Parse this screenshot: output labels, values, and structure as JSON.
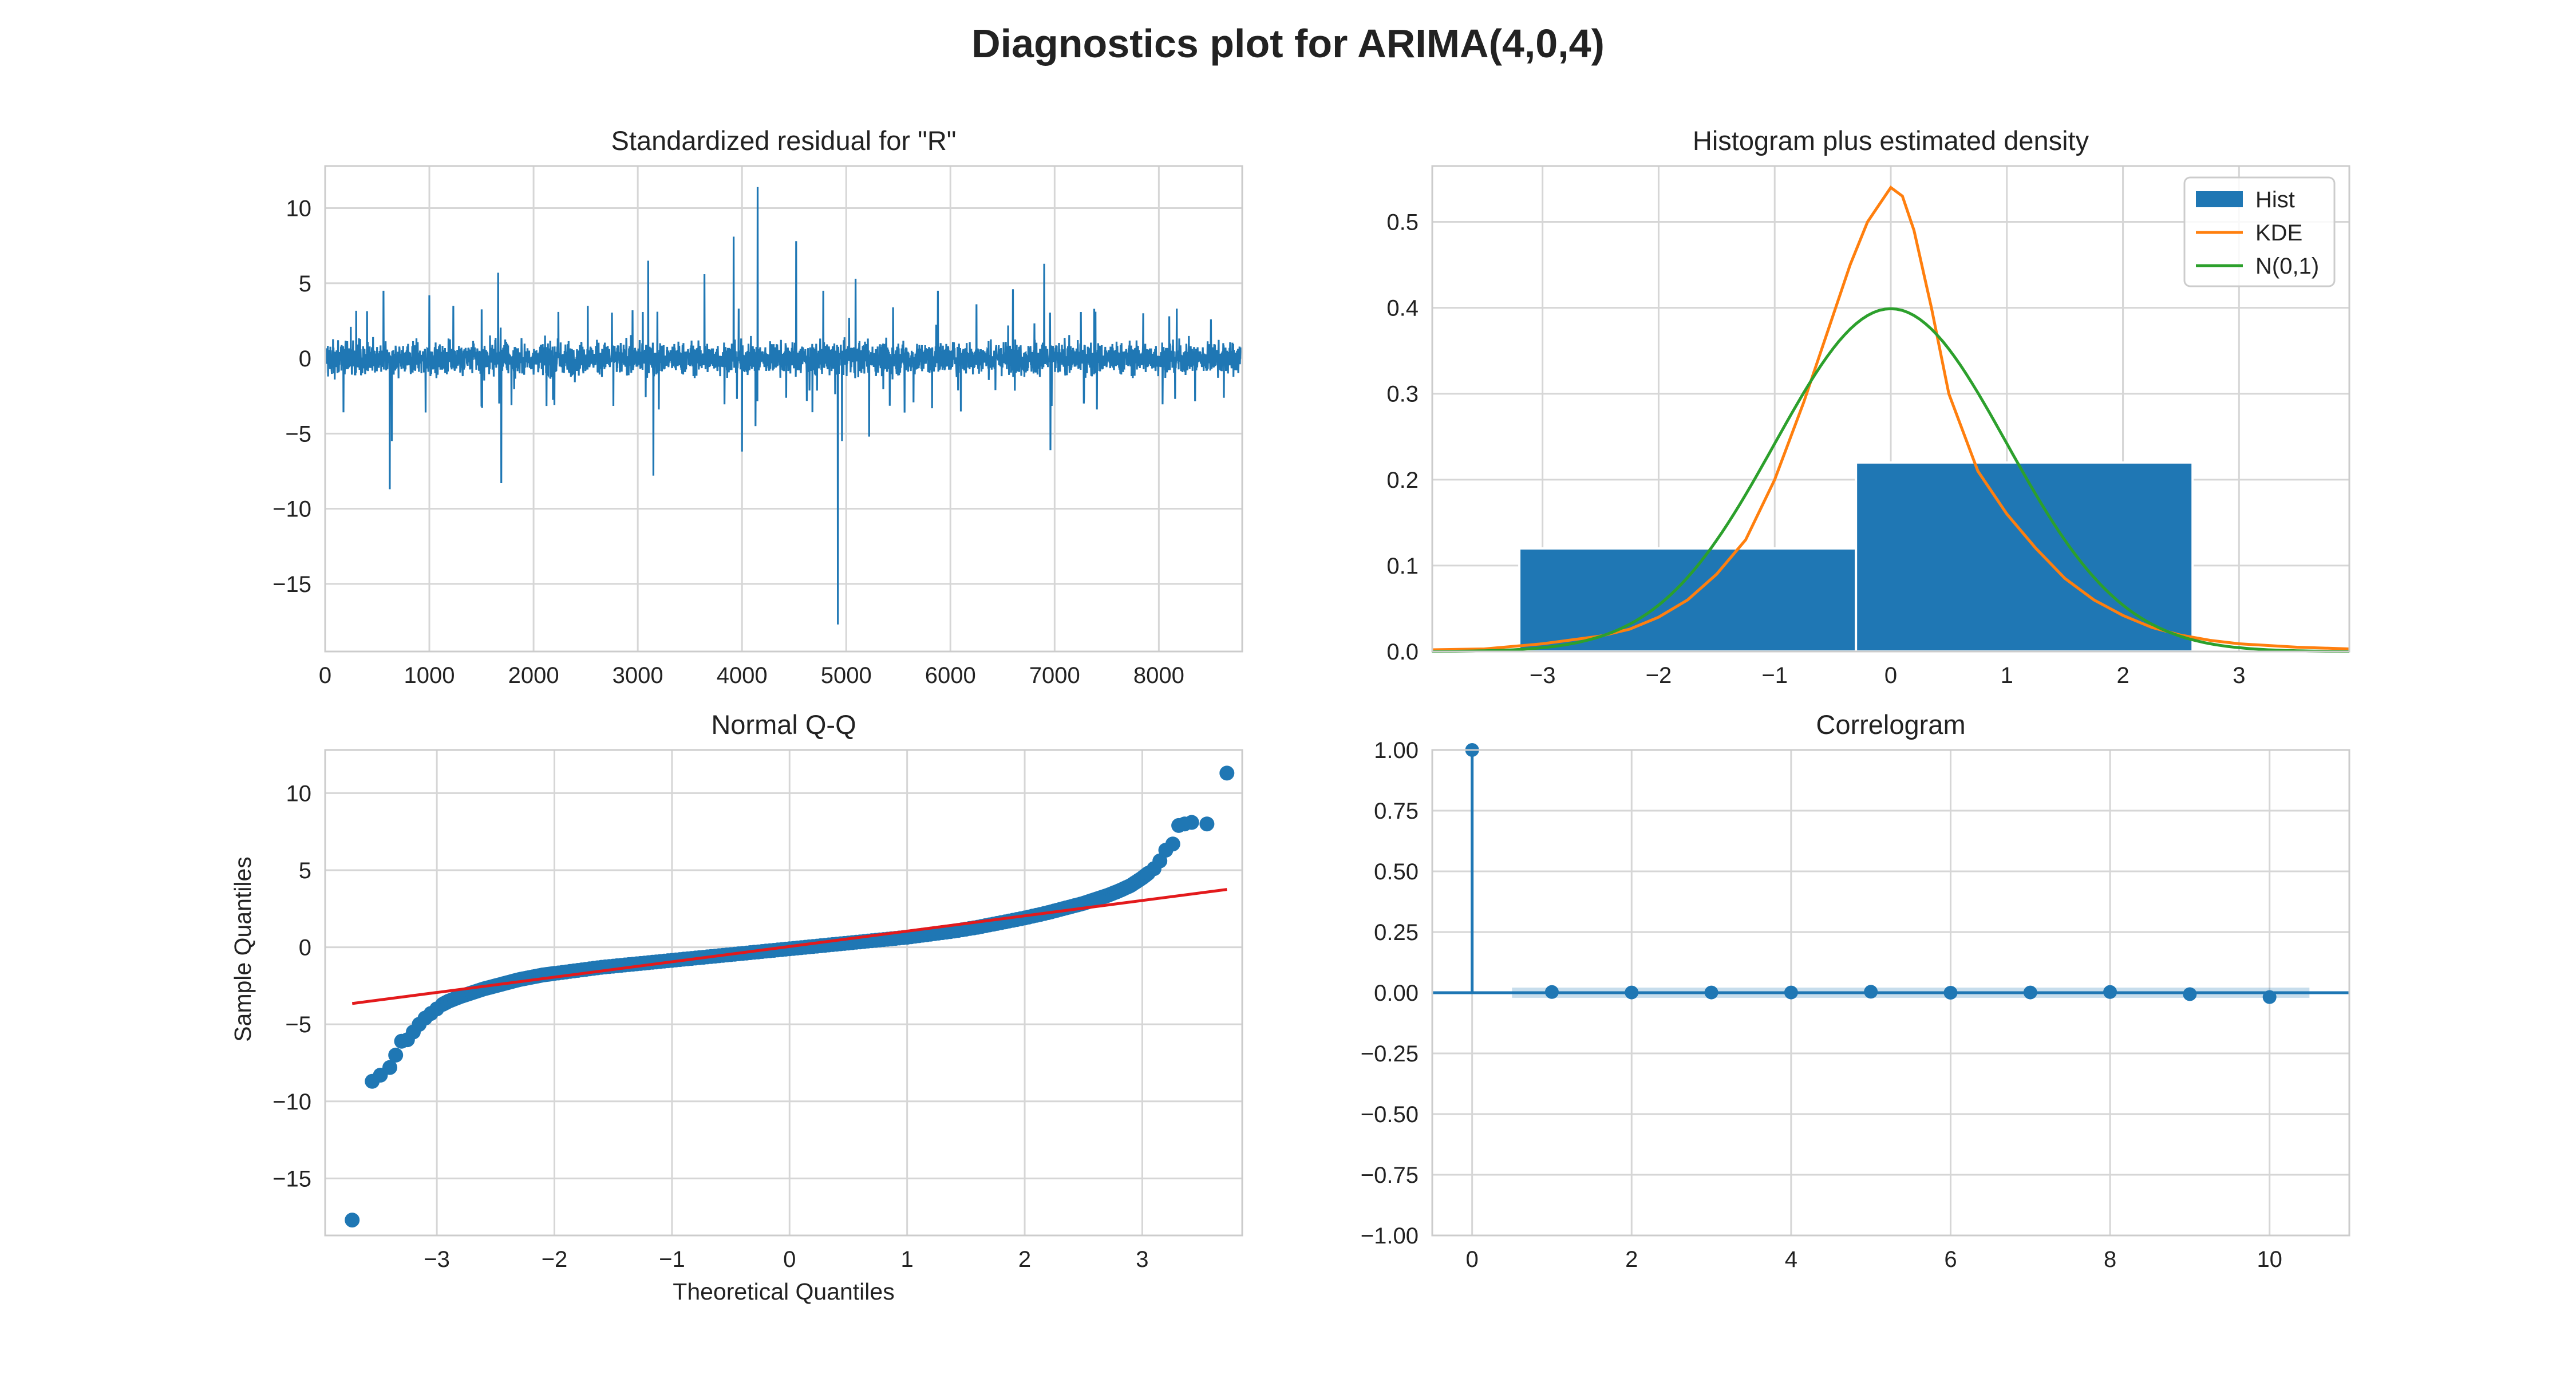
{
  "figure": {
    "title": "Diagnostics plot for ARIMA(4,0,4)"
  },
  "colors": {
    "blue": "#1f77b4",
    "orange": "#ff7f0e",
    "green": "#2ca02c",
    "red": "#e31a1c",
    "grid": "#d6d6d6",
    "spine": "#cccccc"
  },
  "chart_data": [
    {
      "id": "residual",
      "type": "line",
      "title": "Standardized residual for \"R\"",
      "xlabel": "",
      "ylabel": "",
      "xlim": [
        0,
        8800
      ],
      "ylim": [
        -19.5,
        12.8
      ],
      "xticks": [
        0,
        1000,
        2000,
        3000,
        4000,
        5000,
        6000,
        7000,
        8000
      ],
      "yticks": [
        10,
        5,
        0,
        -5,
        -10,
        -15
      ],
      "n_points": 8784,
      "noise_band": [
        -2.2,
        2.6
      ],
      "spikes": [
        {
          "x": 620,
          "y": -8.7
        },
        {
          "x": 560,
          "y": 4.5
        },
        {
          "x": 640,
          "y": -5.5
        },
        {
          "x": 1000,
          "y": 4.2
        },
        {
          "x": 1230,
          "y": 3.5
        },
        {
          "x": 1660,
          "y": 5.7
        },
        {
          "x": 1690,
          "y": -8.3
        },
        {
          "x": 1500,
          "y": -3.2
        },
        {
          "x": 2520,
          "y": 3.5
        },
        {
          "x": 2950,
          "y": 3.2
        },
        {
          "x": 3100,
          "y": 6.5
        },
        {
          "x": 3150,
          "y": -7.8
        },
        {
          "x": 3640,
          "y": 5.6
        },
        {
          "x": 3920,
          "y": 8.1
        },
        {
          "x": 4000,
          "y": -6.2
        },
        {
          "x": 4150,
          "y": 11.4
        },
        {
          "x": 4130,
          "y": -4.5
        },
        {
          "x": 4520,
          "y": 7.8
        },
        {
          "x": 4780,
          "y": 4.5
        },
        {
          "x": 4920,
          "y": -17.7
        },
        {
          "x": 4960,
          "y": -5.5
        },
        {
          "x": 5090,
          "y": 5.3
        },
        {
          "x": 5220,
          "y": -5.2
        },
        {
          "x": 5450,
          "y": 3.4
        },
        {
          "x": 5880,
          "y": 4.5
        },
        {
          "x": 6250,
          "y": 3.6
        },
        {
          "x": 6600,
          "y": 4.6
        },
        {
          "x": 6900,
          "y": 6.3
        },
        {
          "x": 6960,
          "y": -6.1
        },
        {
          "x": 7380,
          "y": 3.3
        },
        {
          "x": 7850,
          "y": 3.0
        },
        {
          "x": 8100,
          "y": 2.8
        },
        {
          "x": 8500,
          "y": 2.6
        },
        {
          "x": 2200,
          "y": -3.1
        },
        {
          "x": 5560,
          "y": -3.6
        },
        {
          "x": 7280,
          "y": -3.0
        }
      ]
    },
    {
      "id": "histogram",
      "type": "bar",
      "title": "Histogram plus estimated density",
      "xlabel": "",
      "ylabel": "",
      "xlim": [
        -3.95,
        3.95
      ],
      "ylim": [
        0,
        0.565
      ],
      "xticks": [
        -3,
        -2,
        -1,
        0,
        1,
        2,
        3
      ],
      "xtick_labels": [
        "−3",
        "−2",
        "−1",
        "0",
        "1",
        "2",
        "3"
      ],
      "yticks": [
        0.0,
        0.1,
        0.2,
        0.3,
        0.4,
        0.5
      ],
      "ytick_labels": [
        "0.0",
        "0.1",
        "0.2",
        "0.3",
        "0.4",
        "0.5"
      ],
      "bins": [
        {
          "left": -3.2,
          "right": -0.3,
          "height": 0.12
        },
        {
          "left": -0.3,
          "right": 2.6,
          "height": 0.22
        }
      ],
      "kde": {
        "x": [
          -3.95,
          -3.5,
          -3.0,
          -2.5,
          -2.25,
          -2.0,
          -1.75,
          -1.5,
          -1.25,
          -1.0,
          -0.75,
          -0.5,
          -0.35,
          -0.2,
          -0.1,
          0.0,
          0.1,
          0.2,
          0.35,
          0.5,
          0.75,
          1.0,
          1.25,
          1.5,
          1.75,
          2.0,
          2.25,
          2.5,
          2.75,
          3.0,
          3.5,
          3.95
        ],
        "y": [
          0.002,
          0.003,
          0.009,
          0.018,
          0.026,
          0.04,
          0.06,
          0.09,
          0.13,
          0.2,
          0.29,
          0.39,
          0.45,
          0.5,
          0.52,
          0.54,
          0.53,
          0.49,
          0.4,
          0.3,
          0.21,
          0.16,
          0.12,
          0.085,
          0.06,
          0.042,
          0.028,
          0.019,
          0.013,
          0.009,
          0.005,
          0.003
        ]
      },
      "normal": {
        "mean": 0,
        "sd": 1
      },
      "legend": [
        "Hist",
        "KDE",
        "N(0,1)"
      ],
      "legend_position": "top-right"
    },
    {
      "id": "qq",
      "type": "scatter",
      "title": "Normal Q-Q",
      "xlabel": "Theoretical Quantiles",
      "ylabel": "Sample Quantiles",
      "xlim": [
        -3.95,
        3.85
      ],
      "ylim": [
        -18.7,
        12.8
      ],
      "xticks": [
        -3,
        -2,
        -1,
        0,
        1,
        2,
        3
      ],
      "xtick_labels": [
        "−3",
        "−2",
        "−1",
        "0",
        "1",
        "2",
        "3"
      ],
      "yticks": [
        10,
        5,
        0,
        -5,
        -10,
        -15
      ],
      "ytick_labels": [
        "10",
        "5",
        "0",
        "−5",
        "−10",
        "−15"
      ],
      "reference_line": {
        "x": [
          -3.72,
          3.72
        ],
        "y": [
          -3.65,
          3.75
        ]
      },
      "points": {
        "x": [
          -3.72,
          -3.55,
          -3.48,
          -3.4,
          -3.35,
          -3.3,
          -3.25,
          -3.2,
          -3.15,
          -3.1,
          -3.05,
          -3.0,
          -2.95,
          -2.9,
          -2.8,
          -2.7,
          -2.6,
          -2.5,
          -2.4,
          -2.3,
          -2.2,
          -2.1,
          -2.0,
          -1.8,
          -1.6,
          -1.4,
          -1.2,
          -1.0,
          -0.8,
          -0.6,
          -0.4,
          -0.2,
          0.0,
          0.2,
          0.4,
          0.6,
          0.8,
          1.0,
          1.2,
          1.4,
          1.6,
          1.8,
          2.0,
          2.2,
          2.35,
          2.5,
          2.6,
          2.7,
          2.8,
          2.9,
          3.0,
          3.05,
          3.1,
          3.15,
          3.2,
          3.26,
          3.31,
          3.36,
          3.42,
          3.55,
          3.72
        ],
        "y": [
          -17.7,
          -8.7,
          -8.3,
          -7.8,
          -7.0,
          -6.1,
          -6.0,
          -5.5,
          -5.0,
          -4.6,
          -4.3,
          -4.0,
          -3.7,
          -3.5,
          -3.2,
          -2.95,
          -2.7,
          -2.5,
          -2.3,
          -2.1,
          -1.95,
          -1.8,
          -1.7,
          -1.5,
          -1.3,
          -1.15,
          -1.0,
          -0.85,
          -0.7,
          -0.55,
          -0.4,
          -0.25,
          -0.1,
          0.05,
          0.2,
          0.35,
          0.5,
          0.65,
          0.85,
          1.05,
          1.3,
          1.6,
          1.9,
          2.25,
          2.55,
          2.85,
          3.1,
          3.35,
          3.65,
          4.0,
          4.5,
          4.8,
          5.1,
          5.6,
          6.3,
          6.7,
          7.9,
          8.0,
          8.1,
          8.0,
          11.3
        ]
      }
    },
    {
      "id": "correlogram",
      "type": "bar",
      "title": "Correlogram",
      "xlabel": "",
      "ylabel": "",
      "xlim": [
        -0.5,
        11.0
      ],
      "ylim": [
        -1.0,
        1.0
      ],
      "xticks": [
        0,
        2,
        4,
        6,
        8,
        10
      ],
      "yticks": [
        1.0,
        0.75,
        0.5,
        0.25,
        0.0,
        -0.25,
        -0.5,
        -0.75,
        -1.0
      ],
      "ytick_labels": [
        "1.00",
        "0.75",
        "0.50",
        "0.25",
        "0.00",
        "−0.25",
        "−0.50",
        "−0.75",
        "−1.00"
      ],
      "lags": [
        0,
        1,
        2,
        3,
        4,
        5,
        6,
        7,
        8,
        9,
        10
      ],
      "acf": [
        1.0,
        0.003,
        0.001,
        0.001,
        0.001,
        0.004,
        0.0,
        0.001,
        0.003,
        -0.006,
        -0.018
      ],
      "confidence_band": [
        -0.021,
        0.021
      ]
    }
  ]
}
